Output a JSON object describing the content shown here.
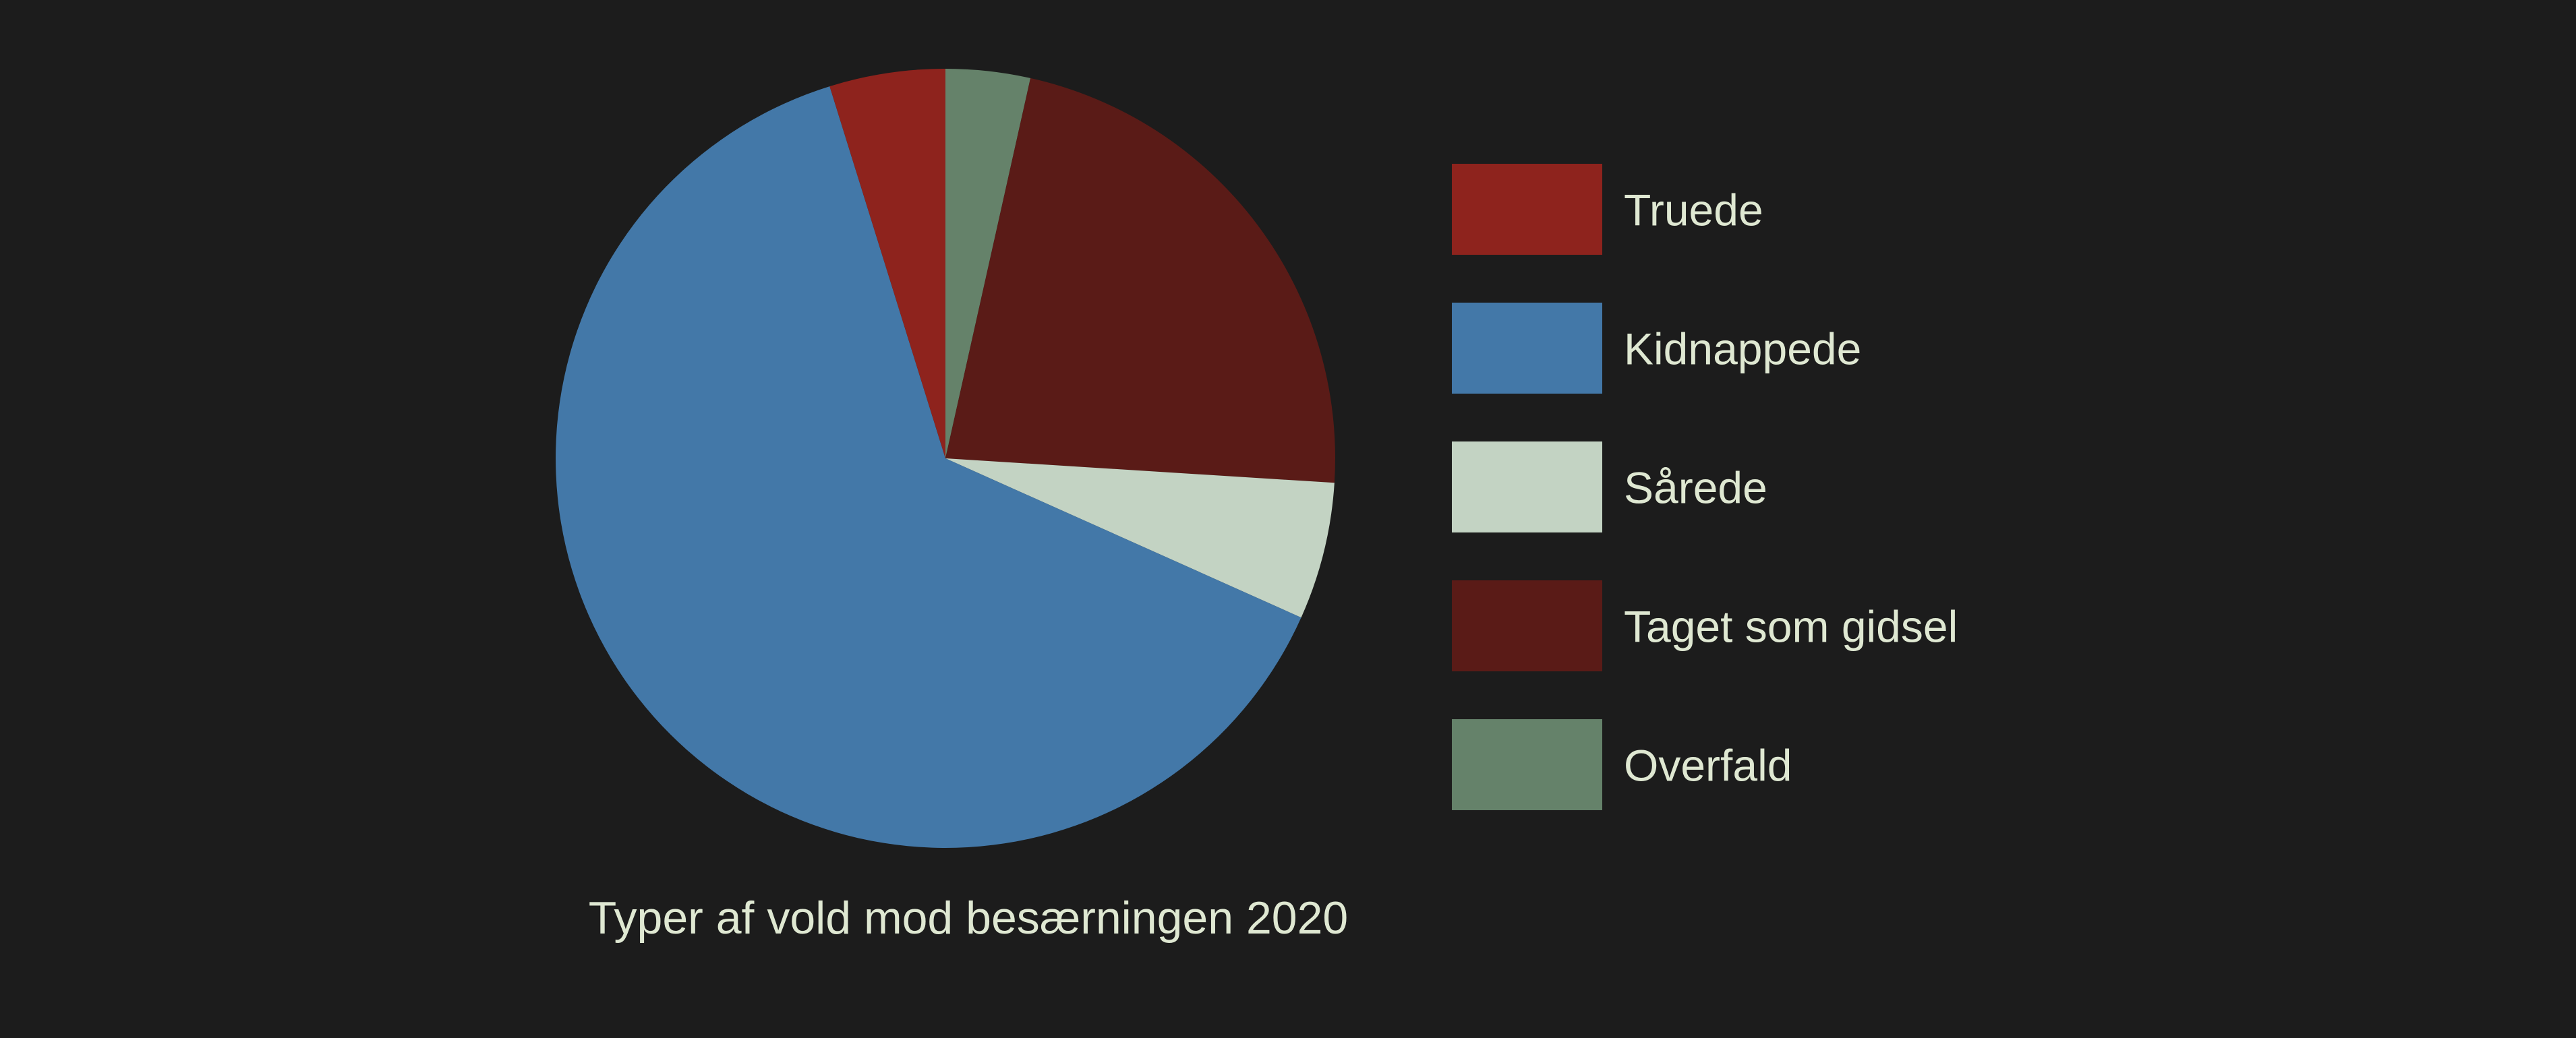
{
  "chart_data": {
    "type": "pie",
    "title": "Typer af vold mod besærningen 2020",
    "slices": [
      {
        "label": "Overfald",
        "value": 3.5,
        "color": "#65826a"
      },
      {
        "label": "Taget som gidsel",
        "value": 22.5,
        "color": "#5a1b17"
      },
      {
        "label": "Sårede",
        "value": 5.7,
        "color": "#c3d3c3"
      },
      {
        "label": "Kidnappede",
        "value": 63.5,
        "color": "#4378a8"
      },
      {
        "label": "Truede",
        "value": 4.8,
        "color": "#8e231d"
      }
    ],
    "legend": {
      "placement": "right",
      "items": [
        {
          "label": "Truede",
          "color": "#8e231d"
        },
        {
          "label": "Kidnappede",
          "color": "#4378a8"
        },
        {
          "label": "Sårede",
          "color": "#c3d3c3"
        },
        {
          "label": "Taget som gidsel",
          "color": "#5a1b17"
        },
        {
          "label": "Overfald",
          "color": "#65826a"
        }
      ]
    },
    "background_color": "#1c1c1c",
    "text_color": "#dfe8d2"
  }
}
